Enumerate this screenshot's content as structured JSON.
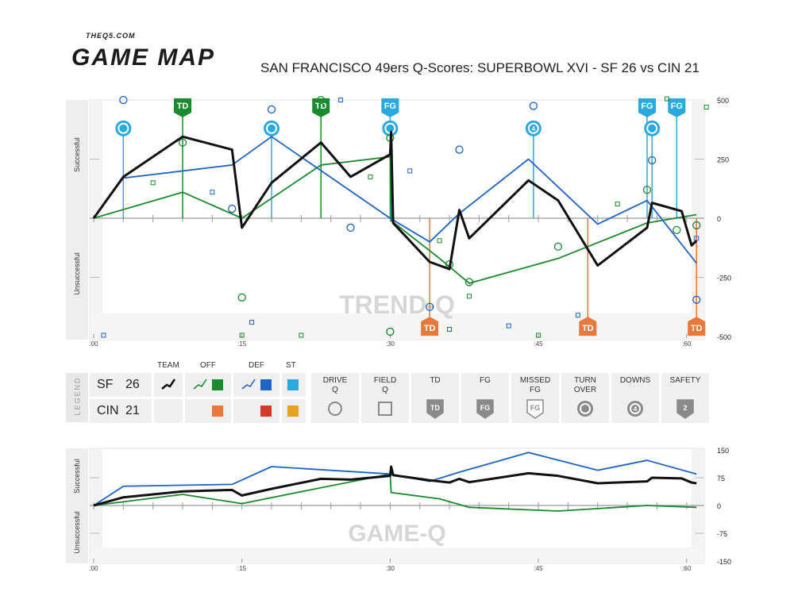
{
  "brand": {
    "small": "THEQ5.COM",
    "big": "GAME MAP"
  },
  "title": "SAN FRANCISCO 49ers Q-Scores: SUPERBOWL XVI - SF 26 vs CIN 21",
  "colors": {
    "team": "#111111",
    "sf_off": "#1a8a2e",
    "sf_def": "#1f63c6",
    "sf_st": "#2aa8e0",
    "cin_off": "#e8793a",
    "cin_def": "#d43a2a",
    "cin_st": "#e8a21e"
  },
  "chart_data": [
    {
      "type": "line",
      "title": "TREND-Q",
      "ylabels": [
        "Successful",
        "Unsuccessful"
      ],
      "ylim": [
        -500,
        500
      ],
      "yticks": [
        500,
        250,
        0,
        -250,
        -500
      ],
      "xlim": [
        0,
        60
      ],
      "xticks": [
        ":00",
        ":15",
        ":30",
        ":45",
        ":60"
      ],
      "series": [
        {
          "name": "TEAM",
          "color": "#111111",
          "x": [
            0,
            3,
            9,
            14,
            15,
            18,
            23,
            26,
            30,
            30.1,
            30.3,
            34,
            36,
            37,
            38,
            44,
            47,
            51,
            56,
            56.5,
            59.5,
            60.5,
            61
          ],
          "y": [
            0,
            175,
            345,
            290,
            -40,
            150,
            320,
            175,
            270,
            365,
            -20,
            -185,
            -215,
            35,
            -85,
            160,
            75,
            -200,
            -40,
            65,
            30,
            -115,
            -95
          ]
        },
        {
          "name": "OFF",
          "color": "#1a8a2e",
          "x": [
            0,
            9,
            15,
            23,
            30,
            30.1,
            35,
            38,
            47,
            56,
            61
          ],
          "y": [
            0,
            110,
            0,
            225,
            260,
            -10,
            -170,
            -275,
            -170,
            -20,
            15
          ]
        },
        {
          "name": "DEF",
          "color": "#1f63c6",
          "x": [
            0,
            3,
            14,
            18,
            30,
            34,
            37,
            44,
            51,
            56,
            61
          ],
          "y": [
            0,
            170,
            225,
            345,
            0,
            -100,
            20,
            250,
            -25,
            75,
            -190
          ]
        }
      ],
      "events": [
        {
          "type": "TURN OVER",
          "team": "SF",
          "x": 3,
          "y": 380
        },
        {
          "type": "TD",
          "team": "SF",
          "x": 9,
          "y": 460
        },
        {
          "type": "TURN OVER",
          "team": "SF",
          "x": 18,
          "y": 380
        },
        {
          "type": "TD",
          "team": "SF",
          "x": 23,
          "y": 460
        },
        {
          "type": "FG",
          "team": "SF",
          "x": 30,
          "y": 460
        },
        {
          "type": "TURN OVER",
          "team": "SF",
          "x": 30,
          "y": 380
        },
        {
          "type": "DOWNS",
          "team": "SF",
          "x": 44.5,
          "y": 380
        },
        {
          "type": "FG",
          "team": "SF",
          "x": 56,
          "y": 460
        },
        {
          "type": "TURN OVER",
          "team": "SF",
          "x": 56.5,
          "y": 380
        },
        {
          "type": "FG",
          "team": "SF",
          "x": 59,
          "y": 460
        },
        {
          "type": "TD",
          "team": "CIN",
          "x": 34,
          "y": -450
        },
        {
          "type": "TD",
          "team": "CIN",
          "x": 50,
          "y": -450
        },
        {
          "type": "TD",
          "team": "CIN",
          "x": 61,
          "y": -450
        }
      ],
      "drive_q": [
        {
          "x": 3,
          "y": 500,
          "c": "def"
        },
        {
          "x": 9,
          "y": 320,
          "c": "off"
        },
        {
          "x": 14,
          "y": 40,
          "c": "def"
        },
        {
          "x": 15,
          "y": -335,
          "c": "off"
        },
        {
          "x": 18,
          "y": 460,
          "c": "def"
        },
        {
          "x": 23,
          "y": 500,
          "c": "off"
        },
        {
          "x": 26,
          "y": -40,
          "c": "def"
        },
        {
          "x": 30,
          "y": 340,
          "c": "off"
        },
        {
          "x": 30,
          "y": -480,
          "c": "off"
        },
        {
          "x": 34,
          "y": -375,
          "c": "def"
        },
        {
          "x": 36,
          "y": -195,
          "c": "off"
        },
        {
          "x": 37,
          "y": 290,
          "c": "def"
        },
        {
          "x": 38,
          "y": -270,
          "c": "off"
        },
        {
          "x": 44.5,
          "y": 475,
          "c": "def"
        },
        {
          "x": 47,
          "y": -120,
          "c": "off"
        },
        {
          "x": 56,
          "y": 120,
          "c": "off"
        },
        {
          "x": 56.5,
          "y": 245,
          "c": "def"
        },
        {
          "x": 59,
          "y": -50,
          "c": "off"
        },
        {
          "x": 61,
          "y": -30,
          "c": "off"
        },
        {
          "x": 61,
          "y": -345,
          "c": "def"
        }
      ],
      "field_q": [
        {
          "x": 1,
          "y": -495,
          "c": "def"
        },
        {
          "x": 6,
          "y": 150,
          "c": "off"
        },
        {
          "x": 12,
          "y": 110,
          "c": "def"
        },
        {
          "x": 15,
          "y": -495,
          "c": "off"
        },
        {
          "x": 16,
          "y": -440,
          "c": "def"
        },
        {
          "x": 21,
          "y": -495,
          "c": "off"
        },
        {
          "x": 25,
          "y": 500,
          "c": "def"
        },
        {
          "x": 28,
          "y": 175,
          "c": "off"
        },
        {
          "x": 32,
          "y": 200,
          "c": "def"
        },
        {
          "x": 35,
          "y": -95,
          "c": "off"
        },
        {
          "x": 36,
          "y": -470,
          "c": "def"
        },
        {
          "x": 38,
          "y": -330,
          "c": "off"
        },
        {
          "x": 42,
          "y": -455,
          "c": "def"
        },
        {
          "x": 45,
          "y": -495,
          "c": "off"
        },
        {
          "x": 49,
          "y": -410,
          "c": "def"
        },
        {
          "x": 53,
          "y": 60,
          "c": "off"
        },
        {
          "x": 58,
          "y": 505,
          "c": "off"
        },
        {
          "x": 61,
          "y": -85,
          "c": "def"
        },
        {
          "x": 62,
          "y": 470,
          "c": "off"
        }
      ]
    },
    {
      "type": "line",
      "title": "GAME-Q",
      "ylabels": [
        "Successful",
        "Unsuccessful"
      ],
      "ylim": [
        -150,
        150
      ],
      "yticks": [
        150,
        75,
        0,
        -75,
        -150
      ],
      "xlim": [
        0,
        60
      ],
      "xticks": [
        ":00",
        ":15",
        ":30",
        ":45",
        ":60"
      ],
      "series": [
        {
          "name": "TEAM",
          "color": "#111111",
          "x": [
            0,
            3,
            9,
            14,
            15,
            18,
            23,
            26,
            30,
            30.1,
            30.3,
            34,
            36,
            37,
            38,
            44,
            47,
            51,
            56,
            56.5,
            59.5,
            60.5,
            61
          ],
          "y": [
            0,
            22,
            38,
            42,
            27,
            45,
            72,
            70,
            80,
            105,
            82,
            68,
            62,
            72,
            63,
            87,
            80,
            60,
            65,
            75,
            73,
            62,
            60
          ]
        },
        {
          "name": "OFF",
          "color": "#1a8a2e",
          "x": [
            0,
            9,
            15,
            23,
            30,
            30.1,
            35,
            38,
            47,
            56,
            61
          ],
          "y": [
            0,
            30,
            5,
            48,
            85,
            35,
            18,
            -5,
            -15,
            0,
            -5
          ]
        },
        {
          "name": "DEF",
          "color": "#1f63c6",
          "x": [
            0,
            3,
            14,
            18,
            30,
            34,
            37,
            44,
            51,
            56,
            61
          ],
          "y": [
            0,
            52,
            57,
            105,
            85,
            65,
            90,
            143,
            95,
            122,
            85
          ]
        }
      ]
    }
  ],
  "legend": {
    "side": "LEGEND",
    "headers": {
      "team": "TEAM",
      "off": "OFF",
      "def": "DEF",
      "st": "ST"
    },
    "teams": [
      {
        "name": "SF",
        "score": "26"
      },
      {
        "name": "CIN",
        "score": "21"
      }
    ],
    "symbols": [
      {
        "label1": "DRIVE",
        "label2": "Q",
        "icon": "drive-q-circle-icon"
      },
      {
        "label1": "FIELD",
        "label2": "Q",
        "icon": "field-q-square-icon"
      },
      {
        "label1": "TD",
        "label2": "",
        "icon": "td-shield-icon",
        "text": "TD"
      },
      {
        "label1": "FG",
        "label2": "",
        "icon": "fg-shield-icon",
        "text": "FG"
      },
      {
        "label1": "MISSED",
        "label2": "FG",
        "icon": "missed-fg-shield-icon",
        "text": "FG"
      },
      {
        "label1": "TURN",
        "label2": "OVER",
        "icon": "turnover-icon",
        "text": ""
      },
      {
        "label1": "DOWNS",
        "label2": "",
        "icon": "downs-icon",
        "text": "4"
      },
      {
        "label1": "SAFETY",
        "label2": "",
        "icon": "safety-shield-icon",
        "text": "2"
      }
    ]
  }
}
